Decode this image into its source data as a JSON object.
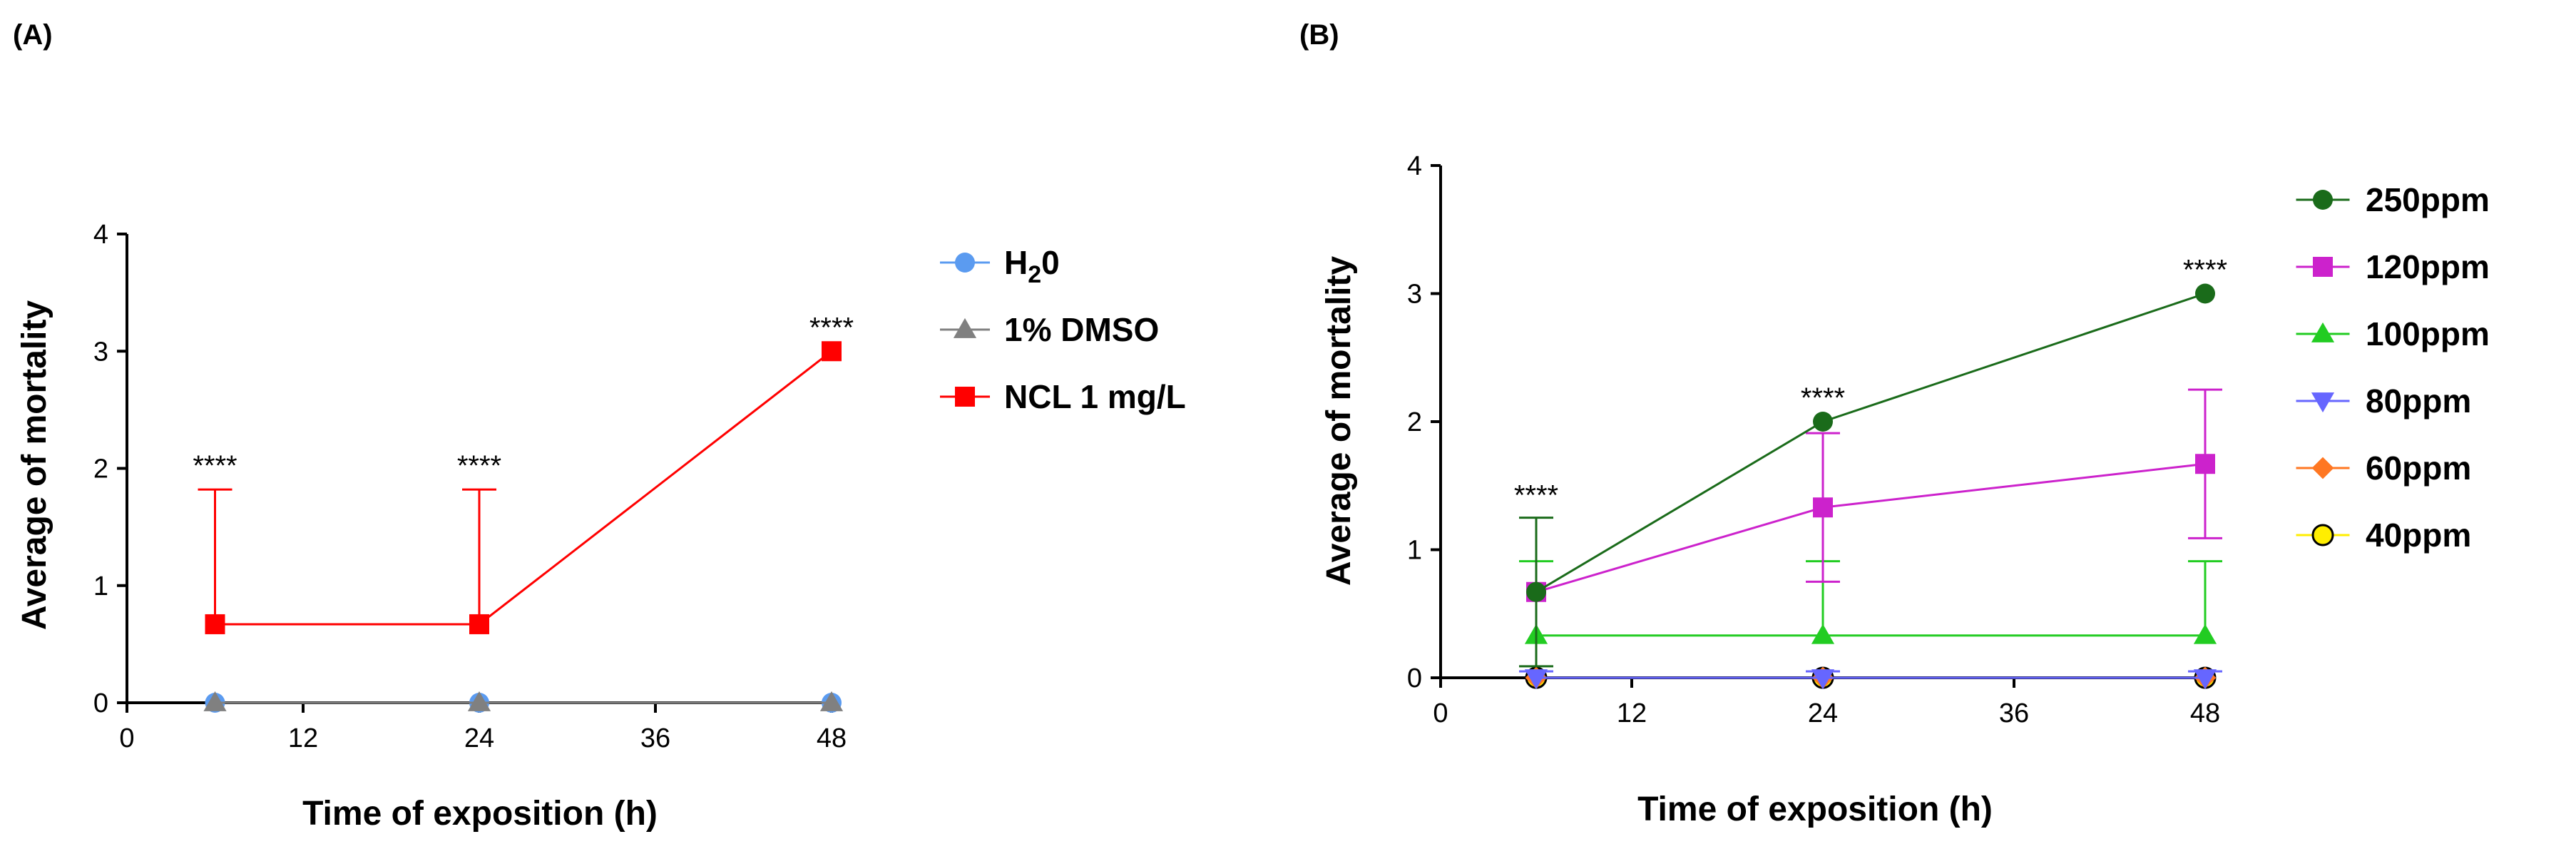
{
  "chart_data": [
    {
      "panel": "(A)",
      "type": "line",
      "title": "",
      "xlabel": "Time of exposition (h)",
      "ylabel": "Average of mortality",
      "xlim": [
        0,
        48
      ],
      "ylim": [
        0,
        4
      ],
      "xticks": [
        "0",
        "12",
        "24",
        "36",
        "48"
      ],
      "yticks": [
        "0",
        "1",
        "2",
        "3",
        "4"
      ],
      "legend_position": "right",
      "annotations": [
        {
          "x": 6,
          "y": 1.82,
          "text": "****"
        },
        {
          "x": 24,
          "y": 1.82,
          "text": "****"
        },
        {
          "x": 48,
          "y": 3.0,
          "text": "****"
        }
      ],
      "series": [
        {
          "name": "H20",
          "label_main": "H",
          "label_sub": "2",
          "label_end": "0",
          "color": "#5B9BF0",
          "marker": "circle",
          "x": [
            6,
            24,
            48
          ],
          "values": [
            0,
            0,
            0
          ],
          "err": [
            0,
            0,
            0
          ]
        },
        {
          "name": "1% DMSO",
          "color": "#808080",
          "marker": "triangle",
          "x": [
            6,
            24,
            48
          ],
          "values": [
            0,
            0,
            0
          ],
          "err": [
            0,
            0,
            0
          ]
        },
        {
          "name": "NCL 1 mg/L",
          "color": "#FF0000",
          "marker": "square",
          "x": [
            6,
            24,
            48
          ],
          "values": [
            0.67,
            0.67,
            3.0
          ],
          "err": [
            1.15,
            1.15,
            0
          ]
        }
      ]
    },
    {
      "panel": "(B)",
      "type": "line",
      "title": "",
      "xlabel": "Time of exposition (h)",
      "ylabel": "Average of mortality",
      "xlim": [
        0,
        48
      ],
      "ylim": [
        0,
        4
      ],
      "xticks": [
        "0",
        "12",
        "24",
        "36",
        "48"
      ],
      "yticks": [
        "0",
        "1",
        "2",
        "3",
        "4"
      ],
      "legend_position": "right",
      "annotations": [
        {
          "x": 6,
          "y": 1.24,
          "text": "****"
        },
        {
          "x": 24,
          "y": 2.0,
          "text": "****"
        },
        {
          "x": 48,
          "y": 3.0,
          "text": "****"
        }
      ],
      "series": [
        {
          "name": "250ppm",
          "color": "#1A6B1A",
          "marker": "circle",
          "x": [
            6,
            24,
            48
          ],
          "values": [
            0.67,
            2.0,
            3.0
          ],
          "err": [
            0.58,
            0,
            0
          ]
        },
        {
          "name": "120ppm",
          "color": "#CC22CC",
          "marker": "square",
          "x": [
            6,
            24,
            48
          ],
          "values": [
            0.67,
            1.33,
            1.67
          ],
          "err": [
            0,
            0.58,
            0.58
          ]
        },
        {
          "name": "100ppm",
          "color": "#22CC22",
          "marker": "triangle",
          "x": [
            6,
            24,
            48
          ],
          "values": [
            0.33,
            0.33,
            0.33
          ],
          "err": [
            0.58,
            0.58,
            0.58
          ]
        },
        {
          "name": "80ppm",
          "color": "#6666FF",
          "marker": "triangle-down",
          "x": [
            6,
            24,
            48
          ],
          "values": [
            0,
            0,
            0
          ],
          "err": [
            0.05,
            0.05,
            0.05
          ]
        },
        {
          "name": "60ppm",
          "color": "#FF7722",
          "marker": "diamond",
          "x": [
            6,
            24,
            48
          ],
          "values": [
            0,
            0,
            0
          ],
          "err": [
            0,
            0,
            0
          ]
        },
        {
          "name": "40ppm",
          "color": "#FFEE00",
          "marker": "circle-outlined",
          "x": [
            6,
            24,
            48
          ],
          "values": [
            0,
            0,
            0
          ],
          "err": [
            0,
            0,
            0
          ]
        }
      ]
    }
  ]
}
